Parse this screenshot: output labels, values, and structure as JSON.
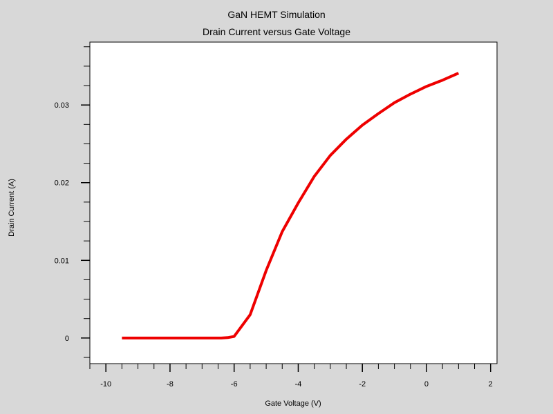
{
  "chart_data": {
    "type": "line",
    "title": "GaN HEMT Simulation",
    "subtitle": "Drain Current versus Gate Voltage",
    "xlabel": "Gate Voltage (V)",
    "ylabel": "Drain Current (A)",
    "xlim": [
      -10.5,
      2.2
    ],
    "ylim": [
      -0.0033,
      0.0381
    ],
    "x_ticks": [
      -10,
      -8,
      -6,
      -4,
      -2,
      0,
      2
    ],
    "x_tick_labels": [
      "-10",
      "-8",
      "-6",
      "-4",
      "-2",
      "0",
      "2"
    ],
    "x_minor_step": 0.5,
    "y_ticks": [
      0,
      0.01,
      0.02,
      0.03
    ],
    "y_tick_labels": [
      "0",
      "0.01",
      "0.02",
      "0.03"
    ],
    "y_minor_step": 0.0025,
    "grid": false,
    "legend": "none",
    "series": [
      {
        "color": "#ee0000",
        "x": [
          -9.5,
          -9,
          -8.5,
          -8,
          -7.5,
          -7,
          -6.5,
          -6.4,
          -6.2,
          -6,
          -5.5,
          -5,
          -4.5,
          -4,
          -3.5,
          -3,
          -2.5,
          -2,
          -1.5,
          -1,
          -0.5,
          0,
          0.5,
          1
        ],
        "y": [
          0,
          0,
          0,
          0,
          0,
          0,
          0,
          0,
          5e-05,
          0.0002,
          0.003,
          0.0087,
          0.0137,
          0.0174,
          0.0208,
          0.0235,
          0.0256,
          0.0274,
          0.0289,
          0.0303,
          0.0314,
          0.0324,
          0.0332,
          0.0341
        ]
      }
    ]
  }
}
